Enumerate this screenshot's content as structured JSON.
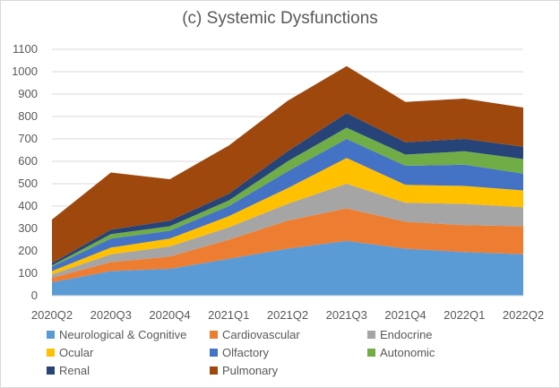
{
  "chart_data": {
    "type": "area",
    "stacked": true,
    "title": "(c) Systemic Dysfunctions",
    "xlabel": "",
    "ylabel": "",
    "categories": [
      "2020Q2",
      "2020Q3",
      "2020Q4",
      "2021Q1",
      "2021Q2",
      "2021Q3",
      "2021Q4",
      "2022Q1",
      "2022Q2"
    ],
    "ylim": [
      0,
      1100
    ],
    "yticks": [
      0,
      100,
      200,
      300,
      400,
      500,
      600,
      700,
      800,
      900,
      1000,
      1100
    ],
    "grid": true,
    "legend_position": "bottom",
    "series": [
      {
        "name": "Neurological & Cognitive",
        "color": "#5b9bd5",
        "values": [
          60,
          110,
          120,
          165,
          210,
          245,
          210,
          195,
          185
        ]
      },
      {
        "name": "Cardiovascular",
        "color": "#ed7d31",
        "values": [
          20,
          40,
          55,
          85,
          125,
          145,
          120,
          120,
          125
        ]
      },
      {
        "name": "Endocrine",
        "color": "#a5a5a5",
        "values": [
          15,
          35,
          45,
          55,
          75,
          110,
          85,
          95,
          85
        ]
      },
      {
        "name": "Ocular",
        "color": "#ffc000",
        "values": [
          15,
          30,
          35,
          50,
          70,
          115,
          80,
          80,
          75
        ]
      },
      {
        "name": "Olfactory",
        "color": "#4472c4",
        "values": [
          20,
          40,
          35,
          45,
          75,
          85,
          85,
          95,
          75
        ]
      },
      {
        "name": "Autonomic",
        "color": "#70ad47",
        "values": [
          5,
          20,
          20,
          25,
          45,
          50,
          50,
          60,
          65
        ]
      },
      {
        "name": "Renal",
        "color": "#264478",
        "values": [
          10,
          20,
          25,
          30,
          45,
          65,
          55,
          55,
          55
        ]
      },
      {
        "name": "Pulmonary",
        "color": "#9e480e",
        "values": [
          195,
          255,
          185,
          215,
          225,
          210,
          180,
          180,
          175
        ]
      }
    ]
  }
}
